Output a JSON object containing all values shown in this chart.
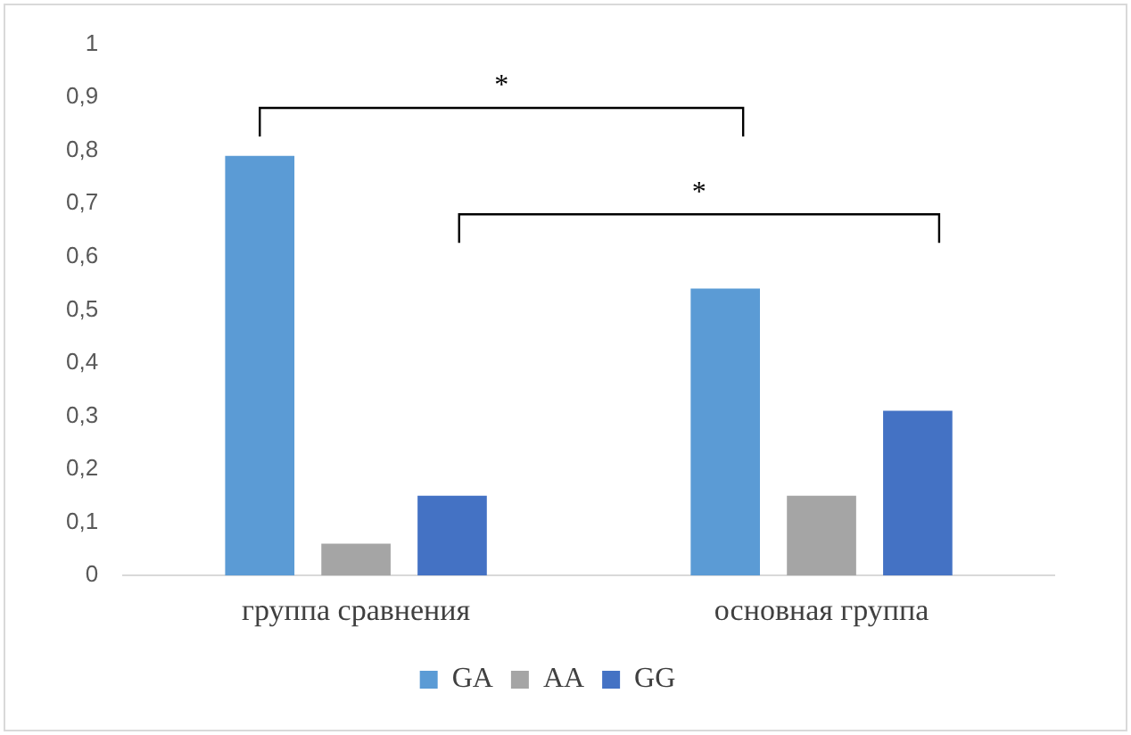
{
  "chart_data": {
    "type": "bar",
    "categories": [
      "группа сравнения",
      "основная группа"
    ],
    "series": [
      {
        "name": "GA",
        "color": "#5b9bd5",
        "values": [
          0.79,
          0.54
        ]
      },
      {
        "name": "AA",
        "color": "#a5a5a5",
        "values": [
          0.06,
          0.15
        ]
      },
      {
        "name": "GG",
        "color": "#4472c4",
        "values": [
          0.15,
          0.31
        ]
      }
    ],
    "ylim": [
      0,
      1
    ],
    "yticks": [
      0,
      {
        "value": 0.1,
        "label": "0,1"
      },
      {
        "value": 0.2,
        "label": "0,2"
      },
      {
        "value": 0.3,
        "label": "0,3"
      },
      {
        "value": 0.4,
        "label": "0,4"
      },
      {
        "value": 0.5,
        "label": "0,5"
      },
      {
        "value": 0.6,
        "label": "0,6"
      },
      {
        "value": 0.7,
        "label": "0,7"
      },
      {
        "value": 0.8,
        "label": "0,8"
      },
      {
        "value": 0.9,
        "label": "0,9"
      },
      1
    ],
    "grid": false,
    "legend": "bottom",
    "annotations": [
      "*",
      "*"
    ]
  }
}
